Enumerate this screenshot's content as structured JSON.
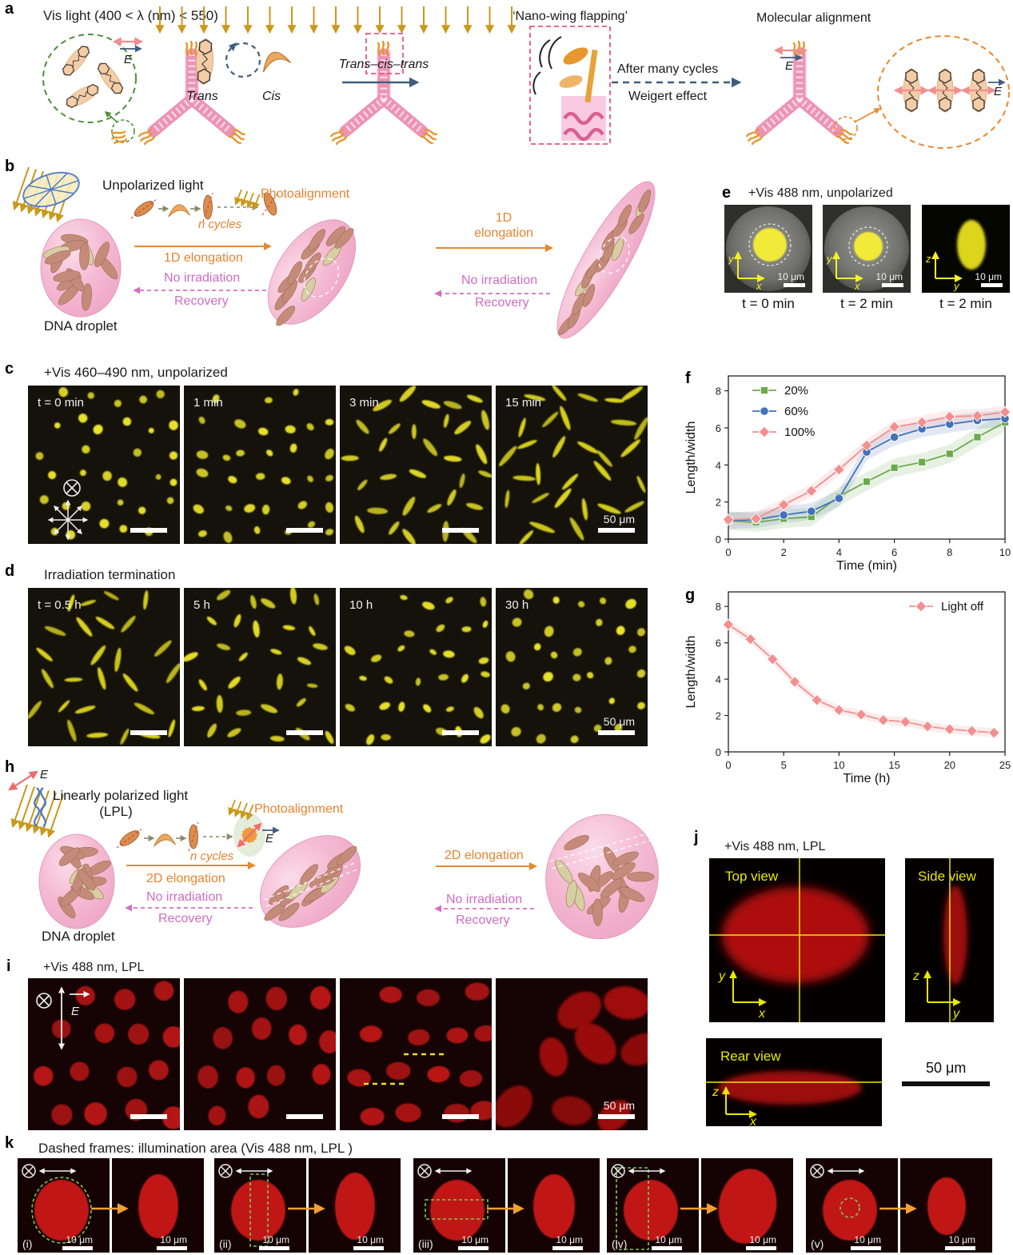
{
  "colors": {
    "accent_orange": "#e8832e",
    "accent_magenta": "#cf6cc3",
    "accent_darkblue": "#3f5d7d",
    "light_gold": "#c9991c",
    "dna_pink": "#ec93b5",
    "droplet_yellow": "#ece42c",
    "droplet_red": "#c01414",
    "annotation_yellow": "#e8e800",
    "frame_green": "#7ec850"
  },
  "panels": {
    "a": {
      "label": "a",
      "title": "Vis light (400 < λ (nm) < 550)",
      "e_field": "E",
      "trans": "Trans",
      "cis": "Cis",
      "process_arrow": "Trans–cis–trans",
      "nanowing": "‘Nano-wing flapping’",
      "after_cycles": "After many cycles",
      "weigert": "Weigert effect",
      "molecular_alignment": "Molecular alignment"
    },
    "b": {
      "label": "b",
      "light": "Unpolarized light",
      "photoalignment": "Photoalignment",
      "n_cycles": "n cycles",
      "elongation1": "1D elongation",
      "no_irradiation1": "No irradiation",
      "recovery1": "Recovery",
      "droplet": "DNA droplet",
      "elongation2_line1": "1D",
      "elongation2_line2": "elongation",
      "no_irradiation2": "No irradiation",
      "recovery2": "Recovery"
    },
    "c": {
      "label": "c",
      "title": "+Vis 460–490 nm, unpolarized",
      "frames": [
        "t = 0 min",
        "1 min",
        "3 min",
        "15 min"
      ],
      "scalebar": "50 μm"
    },
    "d": {
      "label": "d",
      "title": "Irradiation termination",
      "frames": [
        "t = 0.5 h",
        "5 h",
        "10 h",
        "30 h"
      ],
      "scalebar": "50 μm"
    },
    "e": {
      "label": "e",
      "title": "+Vis 488 nm, unpolarized",
      "scalebar": "10 μm",
      "frames": [
        {
          "caption": "t = 0 min",
          "axis_v": "y",
          "axis_h": "x"
        },
        {
          "caption": "t = 2 min",
          "axis_v": "y",
          "axis_h": "x"
        },
        {
          "caption": "t = 2 min",
          "axis_v": "z",
          "axis_h": "y"
        }
      ]
    },
    "f": {
      "label": "f"
    },
    "g": {
      "label": "g"
    },
    "h": {
      "label": "h",
      "e_field": "E",
      "light_line1": "Linearly polarized light",
      "light_line2": "(LPL)",
      "photoalignment": "Photoalignment",
      "n_cycles": "n cycles",
      "elongation1": "2D elongation",
      "no_irradiation1": "No irradiation",
      "recovery1": "Recovery",
      "droplet": "DNA droplet",
      "elongation2": "2D elongation",
      "no_irradiation2": "No irradiation",
      "recovery2": "Recovery"
    },
    "i": {
      "label": "i",
      "title": "+Vis 488 nm, LPL",
      "e_field": "E",
      "scalebar": "50 μm"
    },
    "j": {
      "label": "j",
      "title": "+Vis 488 nm, LPL",
      "scalebar": "50 μm",
      "views": [
        {
          "name": "Top view",
          "axis_v": "y",
          "axis_h": "x"
        },
        {
          "name": "Side view",
          "axis_v": "z",
          "axis_h": "y"
        },
        {
          "name": "Rear view",
          "axis_v": "z",
          "axis_h": "x"
        }
      ]
    },
    "k": {
      "label": "k",
      "title": "Dashed frames: illumination area (Vis 488 nm, LPL )",
      "groups": [
        "(i)",
        "(ii)",
        "(iii)",
        "(iv)",
        "(v)"
      ],
      "scalebar": "10 μm"
    }
  },
  "chart_data": [
    {
      "id": "f",
      "type": "line",
      "x": [
        0,
        1,
        2,
        3,
        4,
        5,
        6,
        7,
        8,
        9,
        10
      ],
      "series": [
        {
          "name": "20%",
          "color": "#6aaa4b",
          "marker": "square",
          "band": 0.5,
          "values": [
            1.0,
            0.9,
            1.1,
            1.2,
            2.3,
            3.1,
            3.85,
            4.15,
            4.6,
            5.5,
            6.3
          ]
        },
        {
          "name": "60%",
          "color": "#4472b8",
          "marker": "circle",
          "band": 0.45,
          "values": [
            1.0,
            1.05,
            1.3,
            1.5,
            2.2,
            4.7,
            5.5,
            5.95,
            6.2,
            6.4,
            6.5
          ]
        },
        {
          "name": "100%",
          "color": "#f38f8f",
          "marker": "diamond",
          "band": 0.35,
          "values": [
            1.05,
            1.1,
            1.85,
            2.6,
            3.75,
            5.05,
            6.05,
            6.3,
            6.6,
            6.65,
            6.85
          ]
        }
      ],
      "xlabel": "Time (min)",
      "ylabel": "Length/width",
      "xlim": [
        0,
        10
      ],
      "ylim": [
        0,
        8.8
      ],
      "xticks": [
        0,
        2,
        4,
        6,
        8,
        10
      ],
      "yticks": [
        0,
        2,
        4,
        6,
        8
      ],
      "grid": false,
      "legend_position": "top-left"
    },
    {
      "id": "g",
      "type": "line",
      "x": [
        0,
        2,
        4,
        6,
        8,
        10,
        12,
        14,
        16,
        18,
        20,
        22,
        24
      ],
      "series": [
        {
          "name": "Light off",
          "color": "#f38f8f",
          "marker": "diamond",
          "band": 0.25,
          "values": [
            7.0,
            6.2,
            5.1,
            3.85,
            2.85,
            2.3,
            2.05,
            1.75,
            1.65,
            1.4,
            1.25,
            1.15,
            1.05
          ]
        }
      ],
      "xlabel": "Time (h)",
      "ylabel": "Length/width",
      "xlim": [
        0,
        25
      ],
      "ylim": [
        0,
        8.8
      ],
      "xticks": [
        0,
        5,
        10,
        15,
        20,
        25
      ],
      "yticks": [
        0,
        2,
        4,
        6,
        8
      ],
      "grid": false,
      "legend_position": "top-right"
    }
  ]
}
